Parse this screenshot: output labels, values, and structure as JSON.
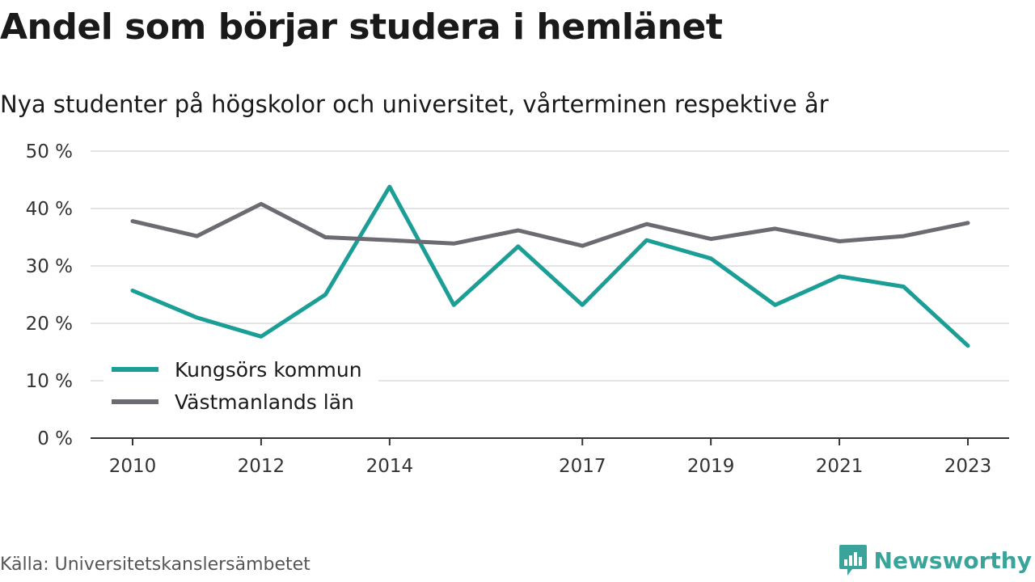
{
  "title": "Andel som börjar studera i hemlänet",
  "subtitle": "Nya studenter på högskolor och universitet, vårterminen respektive år",
  "source": "Källa: Universitetskanslersämbetet",
  "brand": {
    "name": "Newsworthy",
    "icon": "newsworthy-logo-icon",
    "color": "#3aa39a"
  },
  "chart_data": {
    "type": "line",
    "x": [
      2010,
      2011,
      2012,
      2013,
      2014,
      2015,
      2016,
      2017,
      2018,
      2019,
      2020,
      2021,
      2022,
      2023
    ],
    "x_tick_labels": [
      "2010",
      "2012",
      "2014",
      "2017",
      "2019",
      "2021",
      "2023"
    ],
    "y_tick_labels": [
      "0 %",
      "10 %",
      "20 %",
      "30 %",
      "40 %",
      "50 %"
    ],
    "ylim": [
      0,
      50
    ],
    "grid": true,
    "legend_position": "bottom-left",
    "series": [
      {
        "name": "Kungsörs kommun",
        "color": "#1a9e96",
        "values": [
          25.7,
          21.0,
          17.7,
          25.0,
          43.8,
          23.2,
          33.4,
          23.2,
          34.5,
          31.3,
          23.2,
          28.2,
          26.4,
          16.1
        ]
      },
      {
        "name": "Västmanlands län",
        "color": "#6d6b72",
        "values": [
          37.8,
          35.2,
          40.8,
          35.0,
          34.5,
          33.9,
          36.2,
          33.5,
          37.3,
          34.7,
          36.5,
          34.3,
          35.2,
          37.5
        ]
      }
    ]
  }
}
